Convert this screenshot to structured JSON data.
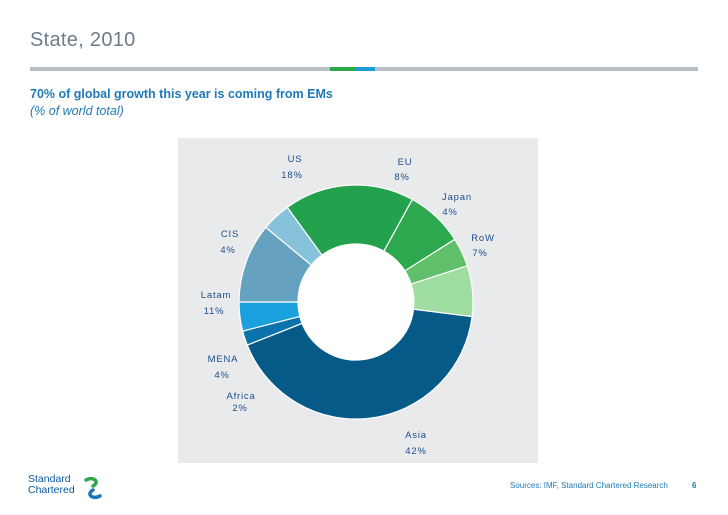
{
  "header": {
    "title": "State, 2010",
    "headline": "70% of global growth  this year is coming from EMs",
    "subhead": "(% of world total)"
  },
  "colors": {
    "rule_gray": "#b8c0c7",
    "rule_green": "#2aa84a",
    "rule_blue": "#1d9bd7",
    "panel": "#e9eaec"
  },
  "chart_data": {
    "type": "pie",
    "variant": "donut",
    "title": "",
    "slices": [
      {
        "name": "US",
        "value": 18,
        "label": "18%",
        "color": "#24a14c"
      },
      {
        "name": "EU",
        "value": 8,
        "label": "8%",
        "color": "#2ea84f"
      },
      {
        "name": "Japan",
        "value": 4,
        "label": "4%",
        "color": "#5fbf6a"
      },
      {
        "name": "RoW",
        "value": 7,
        "label": "7%",
        "color": "#9fdc9f"
      },
      {
        "name": "Asia",
        "value": 42,
        "label": "42%",
        "color": "#065a87"
      },
      {
        "name": "Africa",
        "value": 2,
        "label": "2%",
        "color": "#0c72ab"
      },
      {
        "name": "MENA",
        "value": 4,
        "label": "4%",
        "color": "#1aa0dc"
      },
      {
        "name": "Latam",
        "value": 11,
        "label": "11%",
        "color": "#66a2bf"
      },
      {
        "name": "CIS",
        "value": 4,
        "label": "4%",
        "color": "#86c2d9"
      }
    ]
  },
  "footer": {
    "source": "Sources: IMF, Standard Chartered Research",
    "page_number": "6",
    "logo_line1": "Standard",
    "logo_line2": "Chartered"
  }
}
